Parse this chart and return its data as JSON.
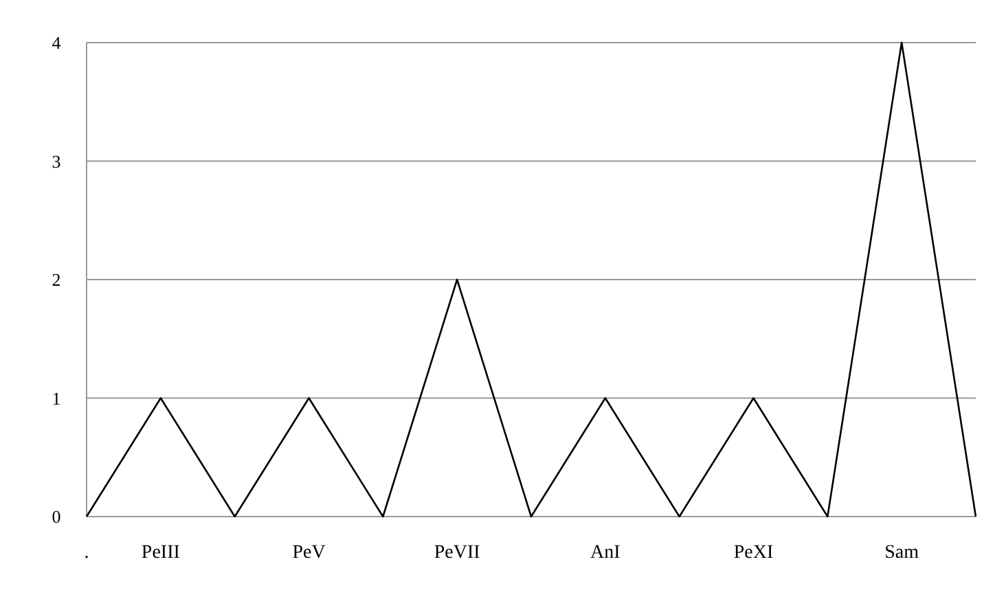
{
  "chart_data": {
    "type": "line",
    "categories": [
      ".",
      "PeIII",
      null,
      "PeV",
      null,
      "PeVII",
      null,
      "AnI",
      null,
      "PeXI",
      null,
      "Sam",
      null
    ],
    "series": [
      {
        "color": "#000000",
        "values": [
          0,
          1,
          0,
          1,
          0,
          2,
          0,
          1,
          0,
          1,
          0,
          4,
          0
        ]
      }
    ],
    "ylim": [
      0,
      4
    ],
    "yticks": [
      0,
      1,
      2,
      3,
      4
    ],
    "grid": "y",
    "marker": "none",
    "line_style": "solid"
  }
}
